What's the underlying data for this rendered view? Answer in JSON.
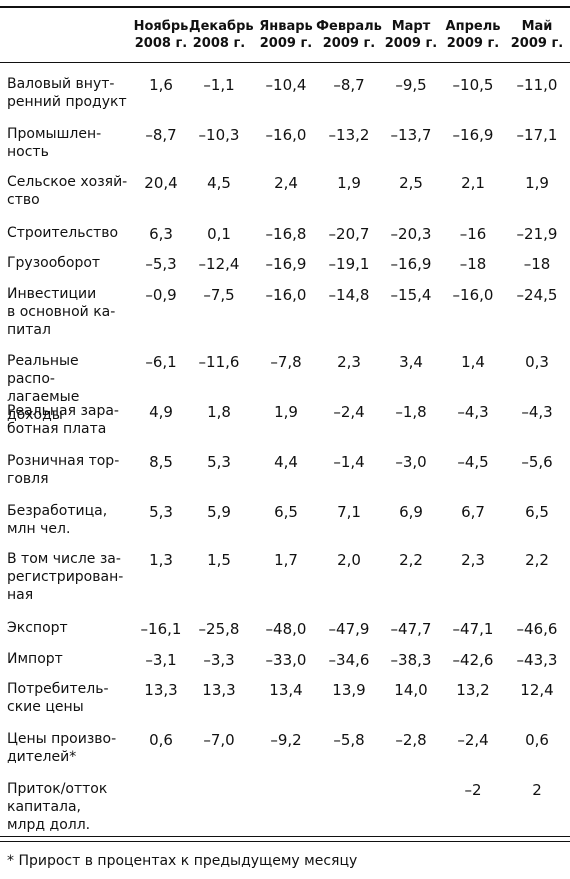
{
  "columns": [
    {
      "label": "Ноябрь\n2008 г."
    },
    {
      "label": "Декабрь\n2008 г."
    },
    {
      "label": "Январь\n2009 г."
    },
    {
      "label": "Февраль\n2009 г."
    },
    {
      "label": "Март\n2009 г."
    },
    {
      "label": "Апрель\n2009 г."
    },
    {
      "label": "Май\n2009 г."
    }
  ],
  "rows": [
    {
      "label": "Валовый внут-\nренний продукт",
      "values": [
        "1,6",
        "–1,1",
        "–10,4",
        "–8,7",
        "–9,5",
        "–10,5",
        "–11,0"
      ]
    },
    {
      "label": "Промышлен-\nность",
      "values": [
        "–8,7",
        "–10,3",
        "–16,0",
        "–13,2",
        "–13,7",
        "–16,9",
        "–17,1"
      ]
    },
    {
      "label": "Сельское хозяй-\nство",
      "values": [
        "20,4",
        "4,5",
        "2,4",
        "1,9",
        "2,5",
        "2,1",
        "1,9"
      ]
    },
    {
      "label": "Строительство",
      "values": [
        "6,3",
        "0,1",
        "–16,8",
        "–20,7",
        "–20,3",
        "–16",
        "–21,9"
      ]
    },
    {
      "label": "Грузооборот",
      "values": [
        "–5,3",
        "–12,4",
        "–16,9",
        "–19,1",
        "–16,9",
        "–18",
        "–18"
      ]
    },
    {
      "label": "Инвестиции\nв основной ка-\nпитал",
      "values": [
        "–0,9",
        "–7,5",
        "–16,0",
        "–14,8",
        "–15,4",
        "–16,0",
        "–24,5"
      ]
    },
    {
      "label": "Реальные распо-\nлагаемые доходы",
      "values": [
        "–6,1",
        "–11,6",
        "–7,8",
        "2,3",
        "3,4",
        "1,4",
        "0,3"
      ]
    },
    {
      "label": "Реальная зара-\nботная плата",
      "values": [
        "4,9",
        "1,8",
        "1,9",
        "–2,4",
        "–1,8",
        "–4,3",
        "–4,3"
      ]
    },
    {
      "label": "Розничная тор-\nговля",
      "values": [
        "8,5",
        "5,3",
        "4,4",
        "–1,4",
        "–3,0",
        "–4,5",
        "–5,6"
      ]
    },
    {
      "label": "Безработица,\nмлн чел.",
      "values": [
        "5,3",
        "5,9",
        "6,5",
        "7,1",
        "6,9",
        "6,7",
        "6,5"
      ]
    },
    {
      "label": "В том числе за-\nрегистрирован-\nная",
      "values": [
        "1,3",
        "1,5",
        "1,7",
        "2,0",
        "2,2",
        "2,3",
        "2,2"
      ]
    },
    {
      "label": "Экспорт",
      "values": [
        "–16,1",
        "–25,8",
        "–48,0",
        "–47,9",
        "–47,7",
        "–47,1",
        "–46,6"
      ]
    },
    {
      "label": "Импорт",
      "values": [
        "–3,1",
        "–3,3",
        "–33,0",
        "–34,6",
        "–38,3",
        "–42,6",
        "–43,3"
      ]
    },
    {
      "label": "Потребитель-\nские цены",
      "values": [
        "13,3",
        "13,3",
        "13,4",
        "13,9",
        "14,0",
        "13,2",
        "12,4"
      ]
    },
    {
      "label": "Цены произво-\nдителей*",
      "values": [
        "0,6",
        "–7,0",
        "–9,2",
        "–5,8",
        "–2,8",
        "–2,4",
        "0,6"
      ]
    },
    {
      "label": "Приток/отток\nкапитала,\nмлрд долл.",
      "values": [
        "",
        "",
        "",
        "",
        "",
        "–2",
        "2"
      ]
    }
  ],
  "footnote": "* Прирост в процентах к предыдущему месяцу"
}
